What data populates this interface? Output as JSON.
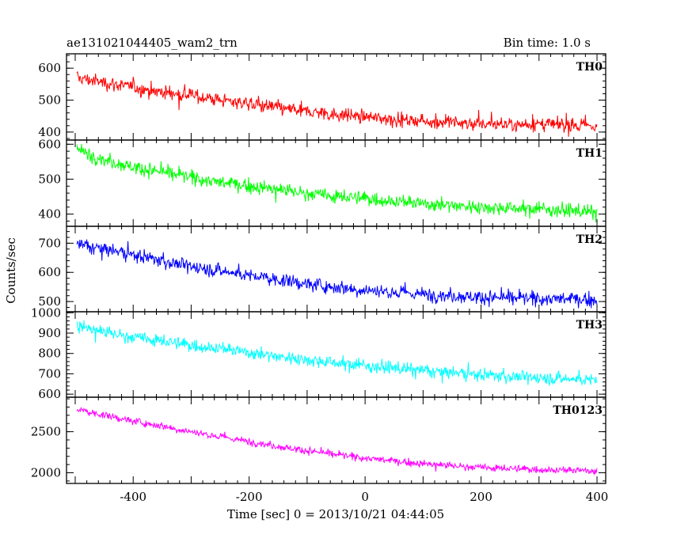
{
  "header": {
    "title": "ae131021044405_wam2_trn",
    "bin_time": "Bin time: 1.0 s"
  },
  "chart_data": {
    "type": "line",
    "xlabel": "Time [sec] 0 = 2013/10/21 04:44:05",
    "ylabel": "Counts/sec",
    "xlim": [
      -515,
      415
    ],
    "xticks": [
      -400,
      -200,
      0,
      200,
      400
    ],
    "x_range": [
      -497,
      400
    ],
    "panels": [
      {
        "name": "TH0",
        "color": "#ff0000",
        "ylim": [
          375,
          645
        ],
        "yticks": [
          400,
          500,
          600
        ],
        "trend_x": [
          -497,
          -450,
          -400,
          -350,
          -300,
          -250,
          -200,
          -150,
          -100,
          -50,
          0,
          50,
          100,
          150,
          200,
          250,
          300,
          350,
          400
        ],
        "trend_y": [
          570,
          555,
          540,
          525,
          515,
          500,
          490,
          475,
          465,
          455,
          448,
          440,
          435,
          430,
          425,
          425,
          425,
          420,
          420
        ],
        "noise": 28
      },
      {
        "name": "TH1",
        "color": "#00ff00",
        "ylim": [
          365,
          612
        ],
        "yticks": [
          400,
          500,
          600
        ],
        "trend_x": [
          -497,
          -450,
          -400,
          -350,
          -300,
          -250,
          -200,
          -150,
          -100,
          -50,
          0,
          50,
          100,
          150,
          200,
          250,
          300,
          350,
          400
        ],
        "trend_y": [
          585,
          555,
          535,
          520,
          505,
          490,
          480,
          470,
          460,
          450,
          445,
          437,
          430,
          425,
          420,
          418,
          415,
          410,
          405
        ],
        "noise": 25
      },
      {
        "name": "TH2",
        "color": "#0000ff",
        "ylim": [
          465,
          758
        ],
        "yticks": [
          500,
          600,
          700
        ],
        "trend_x": [
          -497,
          -450,
          -400,
          -350,
          -300,
          -250,
          -200,
          -150,
          -100,
          -50,
          0,
          50,
          100,
          150,
          200,
          250,
          300,
          350,
          400
        ],
        "trend_y": [
          695,
          680,
          660,
          640,
          620,
          605,
          590,
          575,
          560,
          550,
          540,
          532,
          525,
          520,
          515,
          512,
          510,
          508,
          505
        ],
        "noise": 30
      },
      {
        "name": "TH3",
        "color": "#00ffff",
        "ylim": [
          585,
          1005
        ],
        "yticks": [
          600,
          700,
          800,
          900,
          1000
        ],
        "trend_x": [
          -497,
          -450,
          -400,
          -350,
          -300,
          -250,
          -200,
          -150,
          -100,
          -50,
          0,
          50,
          100,
          150,
          200,
          250,
          300,
          350,
          400
        ],
        "trend_y": [
          935,
          905,
          880,
          860,
          840,
          825,
          805,
          785,
          770,
          755,
          740,
          728,
          715,
          705,
          695,
          688,
          680,
          675,
          670
        ],
        "noise": 40
      },
      {
        "name": "TH0123",
        "color": "#ff00ff",
        "ylim": [
          1870,
          2920
        ],
        "yticks": [
          2000,
          2500
        ],
        "trend_x": [
          -497,
          -450,
          -400,
          -350,
          -300,
          -250,
          -200,
          -150,
          -100,
          -50,
          0,
          50,
          100,
          150,
          200,
          250,
          300,
          350,
          400
        ],
        "trend_y": [
          2770,
          2700,
          2630,
          2570,
          2500,
          2440,
          2380,
          2320,
          2270,
          2220,
          2180,
          2140,
          2110,
          2085,
          2065,
          2050,
          2040,
          2030,
          2025
        ],
        "noise": 55
      }
    ]
  }
}
